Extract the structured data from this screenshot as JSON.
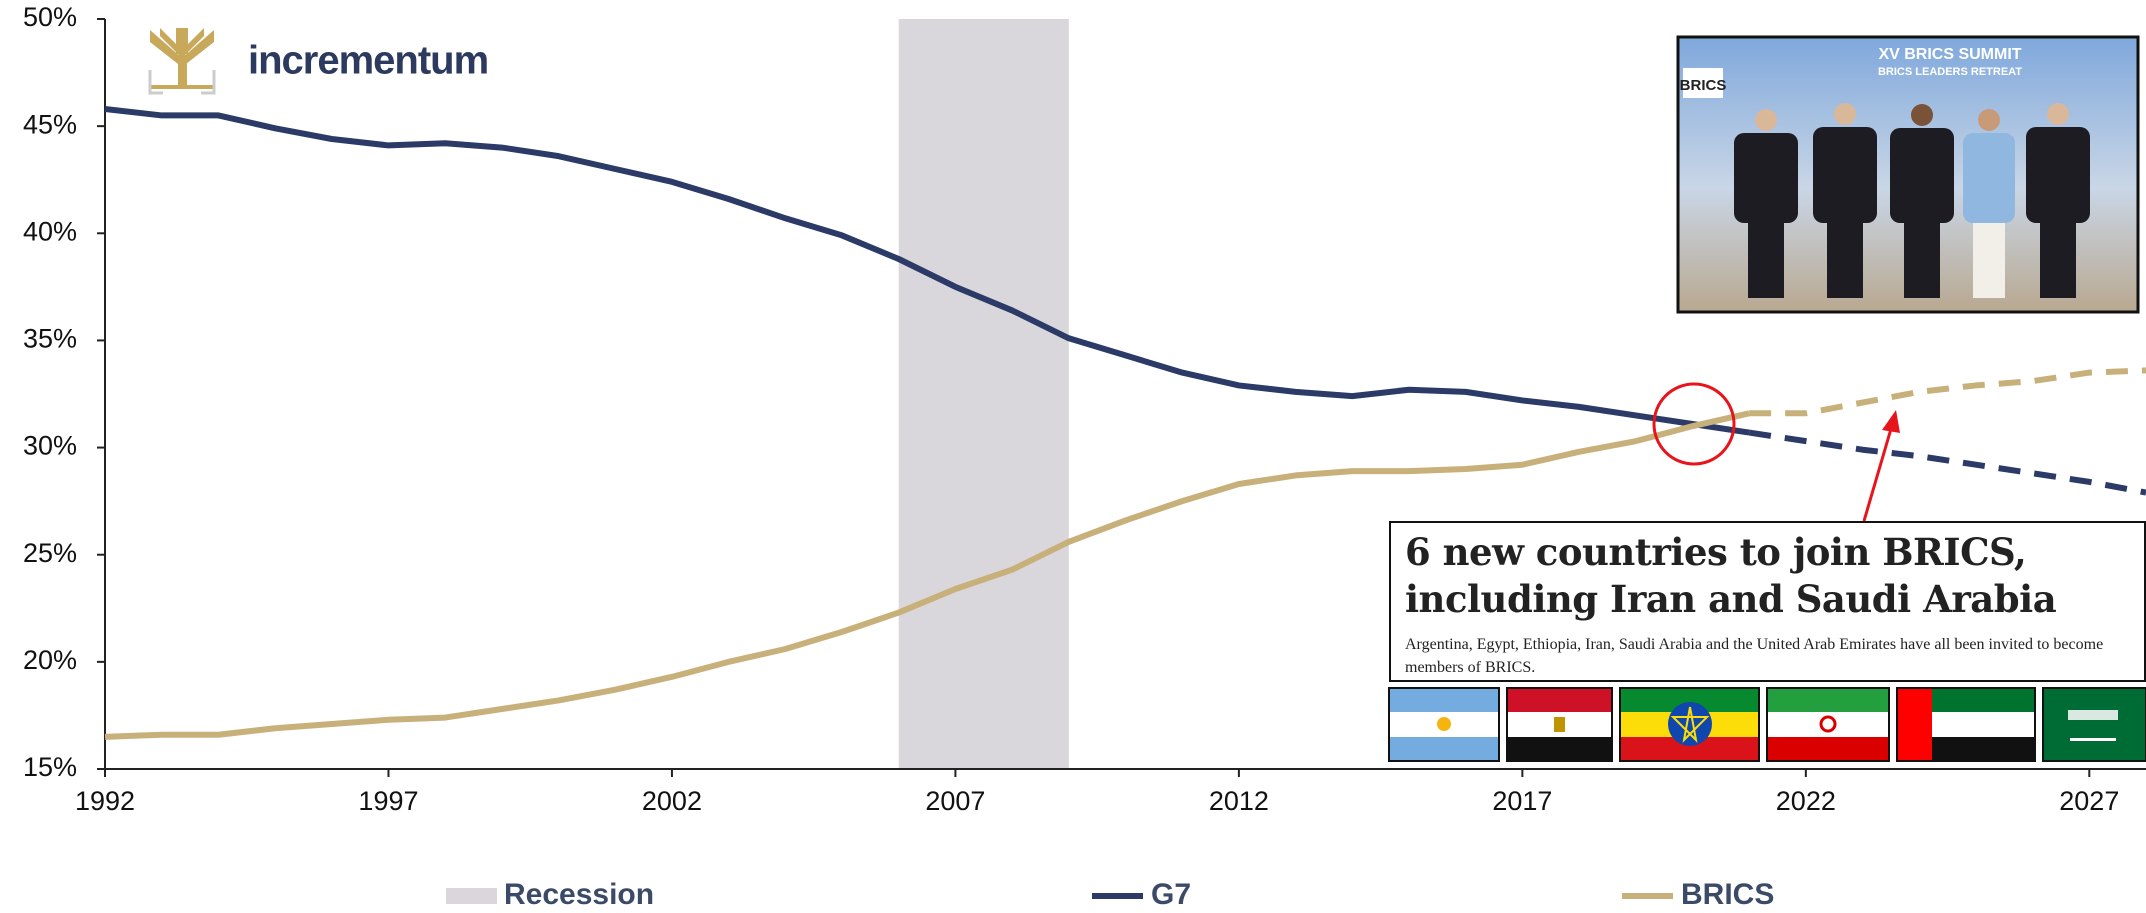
{
  "chart_data": {
    "type": "line",
    "brand": "incrementum",
    "x": [
      1992,
      1993,
      1994,
      1995,
      1996,
      1997,
      1998,
      1999,
      2000,
      2001,
      2002,
      2003,
      2004,
      2005,
      2006,
      2007,
      2008,
      2009,
      2010,
      2011,
      2012,
      2013,
      2014,
      2015,
      2016,
      2017,
      2018,
      2019,
      2020,
      2021,
      2022,
      2023,
      2024,
      2025,
      2026,
      2027,
      2028
    ],
    "forecast_start": 2021,
    "series": [
      {
        "name": "G7",
        "color": "#2b3a67",
        "values": [
          45.8,
          45.5,
          45.5,
          44.9,
          44.4,
          44.1,
          44.2,
          44.0,
          43.6,
          43.0,
          42.4,
          41.6,
          40.7,
          39.9,
          38.8,
          37.5,
          36.4,
          35.1,
          34.3,
          33.5,
          32.9,
          32.6,
          32.4,
          32.7,
          32.6,
          32.2,
          31.9,
          31.5,
          31.1,
          30.7,
          30.3,
          29.9,
          29.6,
          29.2,
          28.8,
          28.4,
          27.9
        ]
      },
      {
        "name": "BRICS",
        "color": "#c8b07a",
        "values": [
          16.5,
          16.6,
          16.6,
          16.9,
          17.1,
          17.3,
          17.4,
          17.8,
          18.2,
          18.7,
          19.3,
          20.0,
          20.6,
          21.4,
          22.3,
          23.4,
          24.3,
          25.6,
          26.6,
          27.5,
          28.3,
          28.7,
          28.9,
          28.9,
          29.0,
          29.2,
          29.8,
          30.3,
          31.0,
          31.6,
          31.6,
          32.1,
          32.6,
          32.9,
          33.1,
          33.5,
          33.6
        ]
      }
    ],
    "recession": {
      "name": "Recession",
      "color": "#d9d7db",
      "ranges": [
        [
          2006,
          2009
        ]
      ]
    },
    "xlim": [
      1992,
      2028
    ],
    "xticks": [
      1992,
      1997,
      2002,
      2007,
      2012,
      2017,
      2022,
      2027
    ],
    "ylim": [
      15,
      50
    ],
    "yticks": [
      {
        "value": 15,
        "label": "15%"
      },
      {
        "value": 20,
        "label": "20%"
      },
      {
        "value": 25,
        "label": "25%"
      },
      {
        "value": 30,
        "label": "30%"
      },
      {
        "value": 35,
        "label": "35%"
      },
      {
        "value": 40,
        "label": "40%"
      },
      {
        "value": 45,
        "label": "45%"
      },
      {
        "value": 50,
        "label": "50%"
      }
    ],
    "annotation": {
      "headline": "6 new countries to join BRICS, including Iran and Saudi Arabia",
      "text": "Argentina, Egypt, Ethiopia, Iran, Saudi Arabia and the United Arab Emirates have all been invited to become members of BRICS."
    },
    "photo_texts": [
      "XV BRICS SUMMIT",
      "BRICS LEADERS RETREAT",
      "BRICS"
    ]
  }
}
